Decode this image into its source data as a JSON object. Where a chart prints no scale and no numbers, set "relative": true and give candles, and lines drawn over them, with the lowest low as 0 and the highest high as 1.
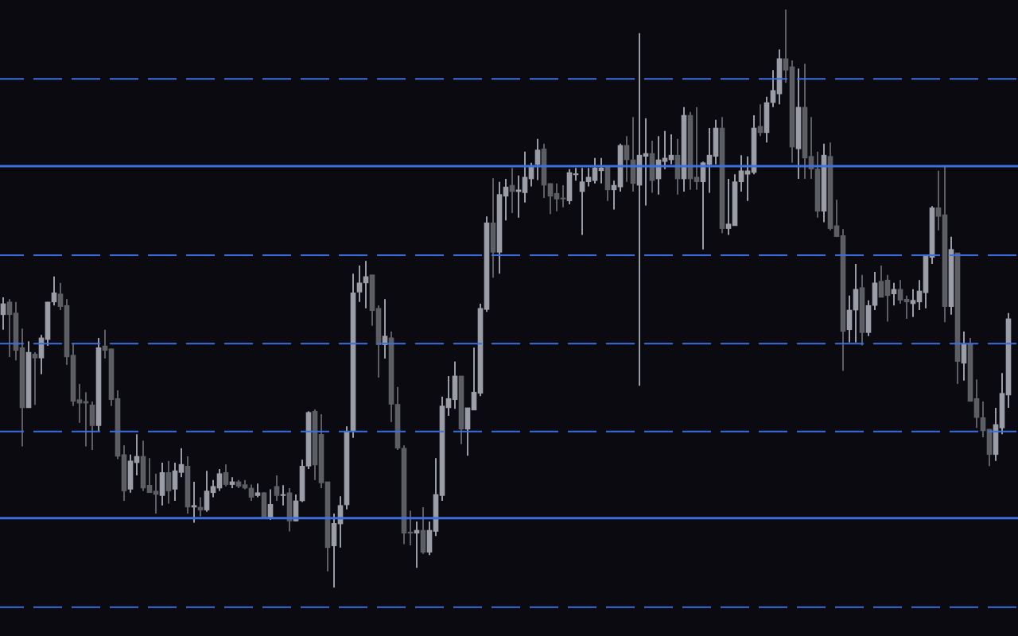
{
  "chart_data": {
    "type": "candlestick",
    "relative": true,
    "categories": [
      null,
      null,
      null,
      null,
      null,
      null,
      null,
      null,
      null,
      null,
      null,
      null,
      null,
      null,
      null,
      null,
      null,
      null,
      null,
      null,
      null,
      null,
      null,
      null,
      null,
      null,
      null,
      null,
      null,
      null,
      null,
      null,
      null,
      null,
      null,
      null,
      null,
      null,
      null,
      null,
      null,
      null,
      null,
      null,
      null,
      null,
      null,
      null,
      null,
      null,
      null,
      null,
      null,
      null,
      null,
      null,
      null,
      null,
      null,
      null,
      null,
      null,
      null,
      null,
      null,
      null,
      null,
      null,
      null,
      null,
      null,
      null,
      null,
      null,
      null,
      null,
      null,
      null,
      null,
      null,
      null,
      null,
      null,
      null,
      null,
      null,
      null,
      null,
      null,
      null,
      null,
      null,
      null,
      null,
      null,
      null,
      null,
      null,
      null,
      null,
      null,
      null,
      null,
      null,
      null,
      null,
      null,
      null,
      null,
      null,
      null,
      null,
      null,
      null,
      null,
      null,
      null,
      null,
      null,
      null,
      null,
      null,
      null,
      null,
      null,
      null,
      null,
      null,
      null,
      null,
      null,
      null,
      null,
      null,
      null,
      null,
      null,
      null,
      null,
      null,
      null,
      null,
      null,
      null,
      null,
      null,
      null,
      null,
      null,
      null,
      null,
      null,
      null,
      null,
      null,
      null,
      null,
      null,
      null
    ],
    "ohlc": [
      [
        0.472,
        0.502,
        0.446,
        0.491
      ],
      [
        0.494,
        0.499,
        0.399,
        0.472
      ],
      [
        0.475,
        0.494,
        0.393,
        0.41
      ],
      [
        0.415,
        0.448,
        0.244,
        0.311
      ],
      [
        0.311,
        0.426,
        0.311,
        0.407
      ],
      [
        0.404,
        0.407,
        0.316,
        0.397
      ],
      [
        0.397,
        0.437,
        0.369,
        0.432
      ],
      [
        0.429,
        0.494,
        0.418,
        0.494
      ],
      [
        0.494,
        0.538,
        0.488,
        0.51
      ],
      [
        0.508,
        0.527,
        0.48,
        0.486
      ],
      [
        0.488,
        0.499,
        0.385,
        0.399
      ],
      [
        0.402,
        0.421,
        0.314,
        0.322
      ],
      [
        0.325,
        0.352,
        0.285,
        0.319
      ],
      [
        0.322,
        0.338,
        0.244,
        0.319
      ],
      [
        0.316,
        0.322,
        0.238,
        0.28
      ],
      [
        0.28,
        0.432,
        0.271,
        0.415
      ],
      [
        0.418,
        0.446,
        0.396,
        0.41
      ],
      [
        0.413,
        0.413,
        0.314,
        0.325
      ],
      [
        0.327,
        0.341,
        0.222,
        0.227
      ],
      [
        0.23,
        0.246,
        0.15,
        0.167
      ],
      [
        0.17,
        0.23,
        0.164,
        0.219
      ],
      [
        0.216,
        0.265,
        0.194,
        0.227
      ],
      [
        0.227,
        0.254,
        0.167,
        0.172
      ],
      [
        0.177,
        0.224,
        0.164,
        0.164
      ],
      [
        0.167,
        0.197,
        0.128,
        0.161
      ],
      [
        0.159,
        0.216,
        0.142,
        0.199
      ],
      [
        0.199,
        0.219,
        0.145,
        0.167
      ],
      [
        0.17,
        0.216,
        0.15,
        0.202
      ],
      [
        0.199,
        0.241,
        0.191,
        0.213
      ],
      [
        0.21,
        0.227,
        0.128,
        0.139
      ],
      [
        0.139,
        0.183,
        0.112,
        0.142
      ],
      [
        0.139,
        0.156,
        0.123,
        0.134
      ],
      [
        0.134,
        0.202,
        0.131,
        0.167
      ],
      [
        0.164,
        0.186,
        0.156,
        0.175
      ],
      [
        0.172,
        0.205,
        0.167,
        0.197
      ],
      [
        0.199,
        0.213,
        0.175,
        0.178
      ],
      [
        0.178,
        0.191,
        0.172,
        0.183
      ],
      [
        0.183,
        0.186,
        0.172,
        0.175
      ],
      [
        0.178,
        0.186,
        0.17,
        0.172
      ],
      [
        0.172,
        0.178,
        0.15,
        0.156
      ],
      [
        0.159,
        0.18,
        0.156,
        0.164
      ],
      [
        0.164,
        0.165,
        0.12,
        0.121
      ],
      [
        0.12,
        0.17,
        0.117,
        0.144
      ],
      [
        0.175,
        0.194,
        0.15,
        0.159
      ],
      [
        0.159,
        0.177,
        0.142,
        0.161
      ],
      [
        0.164,
        0.172,
        0.097,
        0.115
      ],
      [
        0.115,
        0.161,
        0.115,
        0.15
      ],
      [
        0.15,
        0.221,
        0.148,
        0.21
      ],
      [
        0.21,
        0.305,
        0.205,
        0.303
      ],
      [
        0.305,
        0.308,
        0.186,
        0.212
      ],
      [
        0.265,
        0.3,
        0.172,
        0.181
      ],
      [
        0.183,
        0.183,
        0.028,
        0.069
      ],
      [
        0.072,
        0.128,
        0,
        0.111
      ],
      [
        0.11,
        0.158,
        0.069,
        0.142
      ],
      [
        0.143,
        0.279,
        0.135,
        0.27
      ],
      [
        0.27,
        0.543,
        0.259,
        0.51
      ],
      [
        0.511,
        0.557,
        0.494,
        0.527
      ],
      [
        0.527,
        0.565,
        0.483,
        0.538
      ],
      [
        0.541,
        0.541,
        0.453,
        0.479
      ],
      [
        0.483,
        0.488,
        0.363,
        0.42
      ],
      [
        0.42,
        0.499,
        0.396,
        0.435
      ],
      [
        0.432,
        0.443,
        0.286,
        0.317
      ],
      [
        0.317,
        0.347,
        0.238,
        0.241
      ],
      [
        0.241,
        0.246,
        0.075,
        0.094
      ],
      [
        0.096,
        0.133,
        0.073,
        0.094
      ],
      [
        0.094,
        0.114,
        0.034,
        0.099
      ],
      [
        0.099,
        0.139,
        0.058,
        0.061
      ],
      [
        0.061,
        0.114,
        0.056,
        0.099
      ],
      [
        0.097,
        0.224,
        0.089,
        0.161
      ],
      [
        0.159,
        0.33,
        0.15,
        0.314
      ],
      [
        0.311,
        0.366,
        0.297,
        0.327
      ],
      [
        0.325,
        0.391,
        0.309,
        0.366
      ],
      [
        0.366,
        0.366,
        0.248,
        0.274
      ],
      [
        0.274,
        0.311,
        0.228,
        0.311
      ],
      [
        0.307,
        0.415,
        0.307,
        0.338
      ],
      [
        0.336,
        0.491,
        0.331,
        0.483
      ],
      [
        0.481,
        0.642,
        0.477,
        0.631
      ],
      [
        0.631,
        0.708,
        0.536,
        0.58
      ],
      [
        0.58,
        0.702,
        0.543,
        0.68
      ],
      [
        0.677,
        0.707,
        0.635,
        0.693
      ],
      [
        0.696,
        0.726,
        0.648,
        0.685
      ],
      [
        0.685,
        0.713,
        0.64,
        0.688
      ],
      [
        0.683,
        0.754,
        0.666,
        0.71
      ],
      [
        0.707,
        0.735,
        0.694,
        0.728
      ],
      [
        0.732,
        0.776,
        0.705,
        0.757
      ],
      [
        0.759,
        0.768,
        0.674,
        0.696
      ],
      [
        0.699,
        0.699,
        0.646,
        0.677
      ],
      [
        0.682,
        0.699,
        0.651,
        0.672
      ],
      [
        0.674,
        0.696,
        0.658,
        0.672
      ],
      [
        0.669,
        0.724,
        0.663,
        0.718
      ],
      [
        0.714,
        0.726,
        0.704,
        0.715
      ],
      [
        0.685,
        0.726,
        0.61,
        0.702
      ],
      [
        0.702,
        0.726,
        0.694,
        0.71
      ],
      [
        0.704,
        0.743,
        0.699,
        0.726
      ],
      [
        0.721,
        0.743,
        0.699,
        0.726
      ],
      [
        0.728,
        0.728,
        0.669,
        0.688
      ],
      [
        0.688,
        0.704,
        0.654,
        0.696
      ],
      [
        0.693,
        0.768,
        0.685,
        0.765
      ],
      [
        0.765,
        0.781,
        0.702,
        0.74
      ],
      [
        0.74,
        0.814,
        0.685,
        0.699
      ],
      [
        0.696,
        0.959,
        0.349,
        0.748
      ],
      [
        0.746,
        0.812,
        0.661,
        0.751
      ],
      [
        0.751,
        0.773,
        0.683,
        0.704
      ],
      [
        0.707,
        0.781,
        0.68,
        0.74
      ],
      [
        0.737,
        0.79,
        0.724,
        0.743
      ],
      [
        0.74,
        0.784,
        0.732,
        0.748
      ],
      [
        0.748,
        0.776,
        0.68,
        0.707
      ],
      [
        0.707,
        0.831,
        0.685,
        0.817
      ],
      [
        0.817,
        0.823,
        0.688,
        0.707
      ],
      [
        0.71,
        0.831,
        0.688,
        0.702
      ],
      [
        0.702,
        0.737,
        0.585,
        0.735
      ],
      [
        0.732,
        0.795,
        0.683,
        0.748
      ],
      [
        0.746,
        0.809,
        0.732,
        0.795
      ],
      [
        0.795,
        0.814,
        0.613,
        0.621
      ],
      [
        0.621,
        0.707,
        0.61,
        0.629
      ],
      [
        0.626,
        0.715,
        0.626,
        0.702
      ],
      [
        0.702,
        0.748,
        0.685,
        0.721
      ],
      [
        0.715,
        0.746,
        0.669,
        0.721
      ],
      [
        0.718,
        0.817,
        0.715,
        0.795
      ],
      [
        0.798,
        0.836,
        0.781,
        0.787
      ],
      [
        0.787,
        0.849,
        0.77,
        0.839
      ],
      [
        0.839,
        0.895,
        0.831,
        0.86
      ],
      [
        0.854,
        0.931,
        0.836,
        0.915
      ],
      [
        0.915,
        1,
        0.873,
        0.895
      ],
      [
        0.901,
        0.912,
        0.735,
        0.762
      ],
      [
        0.759,
        0.898,
        0.707,
        0.831
      ],
      [
        0.831,
        0.906,
        0.707,
        0.743
      ],
      [
        0.746,
        0.814,
        0.707,
        0.724
      ],
      [
        0.724,
        0.754,
        0.64,
        0.651
      ],
      [
        0.651,
        0.768,
        0.632,
        0.748
      ],
      [
        0.746,
        0.77,
        0.618,
        0.621
      ],
      [
        0.626,
        0.671,
        0.607,
        0.607
      ],
      [
        0.609,
        0.62,
        0.375,
        0.443
      ],
      [
        0.446,
        0.505,
        0.424,
        0.48
      ],
      [
        0.48,
        0.56,
        0.424,
        0.516
      ],
      [
        0.519,
        0.541,
        0.419,
        0.441
      ],
      [
        0.441,
        0.497,
        0.435,
        0.488
      ],
      [
        0.488,
        0.546,
        0.48,
        0.527
      ],
      [
        0.53,
        0.557,
        0.502,
        0.502
      ],
      [
        0.532,
        0.541,
        0.46,
        0.505
      ],
      [
        0.508,
        0.527,
        0.488,
        0.516
      ],
      [
        0.516,
        0.532,
        0.491,
        0.497
      ],
      [
        0.499,
        0.505,
        0.465,
        0.494
      ],
      [
        0.491,
        0.516,
        0.468,
        0.497
      ],
      [
        0.494,
        0.532,
        0.48,
        0.513
      ],
      [
        0.51,
        0.576,
        0.483,
        0.574
      ],
      [
        0.571,
        0.66,
        0.56,
        0.657
      ],
      [
        0.657,
        0.721,
        0.618,
        0.642
      ],
      [
        0.645,
        0.728,
        0.459,
        0.486
      ],
      [
        0.486,
        0.607,
        0.472,
        0.585
      ],
      [
        0.579,
        0.579,
        0.352,
        0.391
      ],
      [
        0.388,
        0.443,
        0.358,
        0.422
      ],
      [
        0.422,
        0.432,
        0.322,
        0.322
      ],
      [
        0.327,
        0.36,
        0.276,
        0.294
      ],
      [
        0.294,
        0.322,
        0.26,
        0.271
      ],
      [
        0.274,
        0.274,
        0.21,
        0.23
      ],
      [
        0.23,
        0.311,
        0.219,
        0.282
      ],
      [
        0.276,
        0.371,
        0.265,
        0.336
      ],
      [
        0.333,
        0.475,
        0.311,
        0.465
      ]
    ],
    "colors": [
      "#9a9ca6",
      "#5c5e64",
      "#5c5e64",
      "#5c5e64",
      "#9a9ca6",
      "#5c5e64",
      "#9a9ca6",
      "#9a9ca6",
      "#9a9ca6",
      "#5c5e64",
      "#5c5e64",
      "#5c5e64",
      "#5c5e64",
      "#5c5e64",
      "#5c5e64",
      "#9a9ca6",
      "#5c5e64",
      "#5c5e64",
      "#5c5e64",
      "#5c5e64",
      "#9a9ca6",
      "#9a9ca6",
      "#5c5e64",
      "#5c5e64",
      "#5c5e64",
      "#9a9ca6",
      "#5c5e64",
      "#9a9ca6",
      "#9a9ca6",
      "#5c5e64",
      "#9a9ca6",
      "#5c5e64",
      "#9a9ca6",
      "#9a9ca6",
      "#9a9ca6",
      "#5c5e64",
      "#9a9ca6",
      "#5c5e64",
      "#5c5e64",
      "#5c5e64",
      "#9a9ca6",
      "#5c5e64",
      "#9a9ca6",
      "#5c5e64",
      "#9a9ca6",
      "#5c5e64",
      "#9a9ca6",
      "#9a9ca6",
      "#9a9ca6",
      "#5c5e64",
      "#5c5e64",
      "#5c5e64",
      "#9a9ca6",
      "#9a9ca6",
      "#9a9ca6",
      "#9a9ca6",
      "#9a9ca6",
      "#9a9ca6",
      "#5c5e64",
      "#5c5e64",
      "#9a9ca6",
      "#5c5e64",
      "#5c5e64",
      "#5c5e64",
      "#5c5e64",
      "#9a9ca6",
      "#5c5e64",
      "#9a9ca6",
      "#9a9ca6",
      "#9a9ca6",
      "#9a9ca6",
      "#9a9ca6",
      "#5c5e64",
      "#9a9ca6",
      "#9a9ca6",
      "#9a9ca6",
      "#9a9ca6",
      "#5c5e64",
      "#9a9ca6",
      "#9a9ca6",
      "#5c5e64",
      "#9a9ca6",
      "#9a9ca6",
      "#9a9ca6",
      "#9a9ca6",
      "#5c5e64",
      "#5c5e64",
      "#5c5e64",
      "#5c5e64",
      "#9a9ca6",
      "#9a9ca6",
      "#9a9ca6",
      "#9a9ca6",
      "#9a9ca6",
      "#9a9ca6",
      "#5c5e64",
      "#9a9ca6",
      "#9a9ca6",
      "#5c5e64",
      "#5c5e64",
      "#9a9ca6",
      "#9a9ca6",
      "#5c5e64",
      "#9a9ca6",
      "#9a9ca6",
      "#9a9ca6",
      "#5c5e64",
      "#9a9ca6",
      "#5c5e64",
      "#5c5e64",
      "#9a9ca6",
      "#9a9ca6",
      "#9a9ca6",
      "#5c5e64",
      "#9a9ca6",
      "#9a9ca6",
      "#9a9ca6",
      "#9a9ca6",
      "#9a9ca6",
      "#5c5e64",
      "#9a9ca6",
      "#9a9ca6",
      "#9a9ca6",
      "#5c5e64",
      "#5c5e64",
      "#9a9ca6",
      "#5c5e64",
      "#5c5e64",
      "#5c5e64",
      "#9a9ca6",
      "#5c5e64",
      "#5c5e64",
      "#5c5e64",
      "#9a9ca6",
      "#9a9ca6",
      "#5c5e64",
      "#9a9ca6",
      "#9a9ca6",
      "#5c5e64",
      "#5c5e64",
      "#9a9ca6",
      "#5c5e64",
      "#5c5e64",
      "#9a9ca6",
      "#9a9ca6",
      "#9a9ca6",
      "#9a9ca6",
      "#5c5e64",
      "#5c5e64",
      "#9a9ca6",
      "#5c5e64",
      "#9a9ca6",
      "#5c5e64",
      "#5c5e64",
      "#5c5e64",
      "#5c5e64",
      "#9a9ca6",
      "#9a9ca6",
      "#9a9ca6"
    ],
    "ref_lines": [
      {
        "axis": "y",
        "value": 0.88,
        "color": "#3d6ee0",
        "line_style": "dashed"
      },
      {
        "axis": "y",
        "value": 0.729,
        "color": "#3d6ee0",
        "line_style": "solid"
      },
      {
        "axis": "y",
        "value": 0.575,
        "color": "#3d6ee0",
        "line_style": "dashed"
      },
      {
        "axis": "y",
        "value": 0.422,
        "color": "#3d6ee0",
        "line_style": "dashed"
      },
      {
        "axis": "y",
        "value": 0.27,
        "color": "#3d6ee0",
        "line_style": "dashed"
      },
      {
        "axis": "y",
        "value": 0.12,
        "color": "#3d6ee0",
        "line_style": "solid"
      },
      {
        "axis": "y",
        "value": -0.034,
        "color": "#3d6ee0",
        "line_style": "dashed"
      }
    ]
  }
}
